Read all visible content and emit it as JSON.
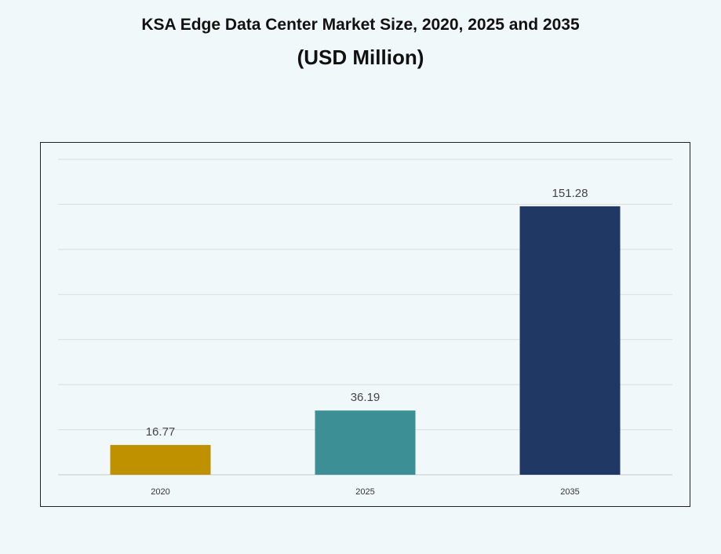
{
  "chart_data": {
    "type": "bar",
    "title": "KSA Edge Data Center Market Size, 2020, 2025 and 2035",
    "subtitle": "(USD Million)",
    "categories": [
      "2020",
      "2025",
      "2035"
    ],
    "values": [
      16.77,
      36.19,
      151.28
    ],
    "data_labels": [
      "16.77",
      "36.19",
      "151.28"
    ],
    "colors": [
      "#bf9000",
      "#3d8f96",
      "#1f3864"
    ],
    "xlabel": "",
    "ylabel": "",
    "grid": true,
    "y_tick_labels_shown": false,
    "legend": "none"
  }
}
